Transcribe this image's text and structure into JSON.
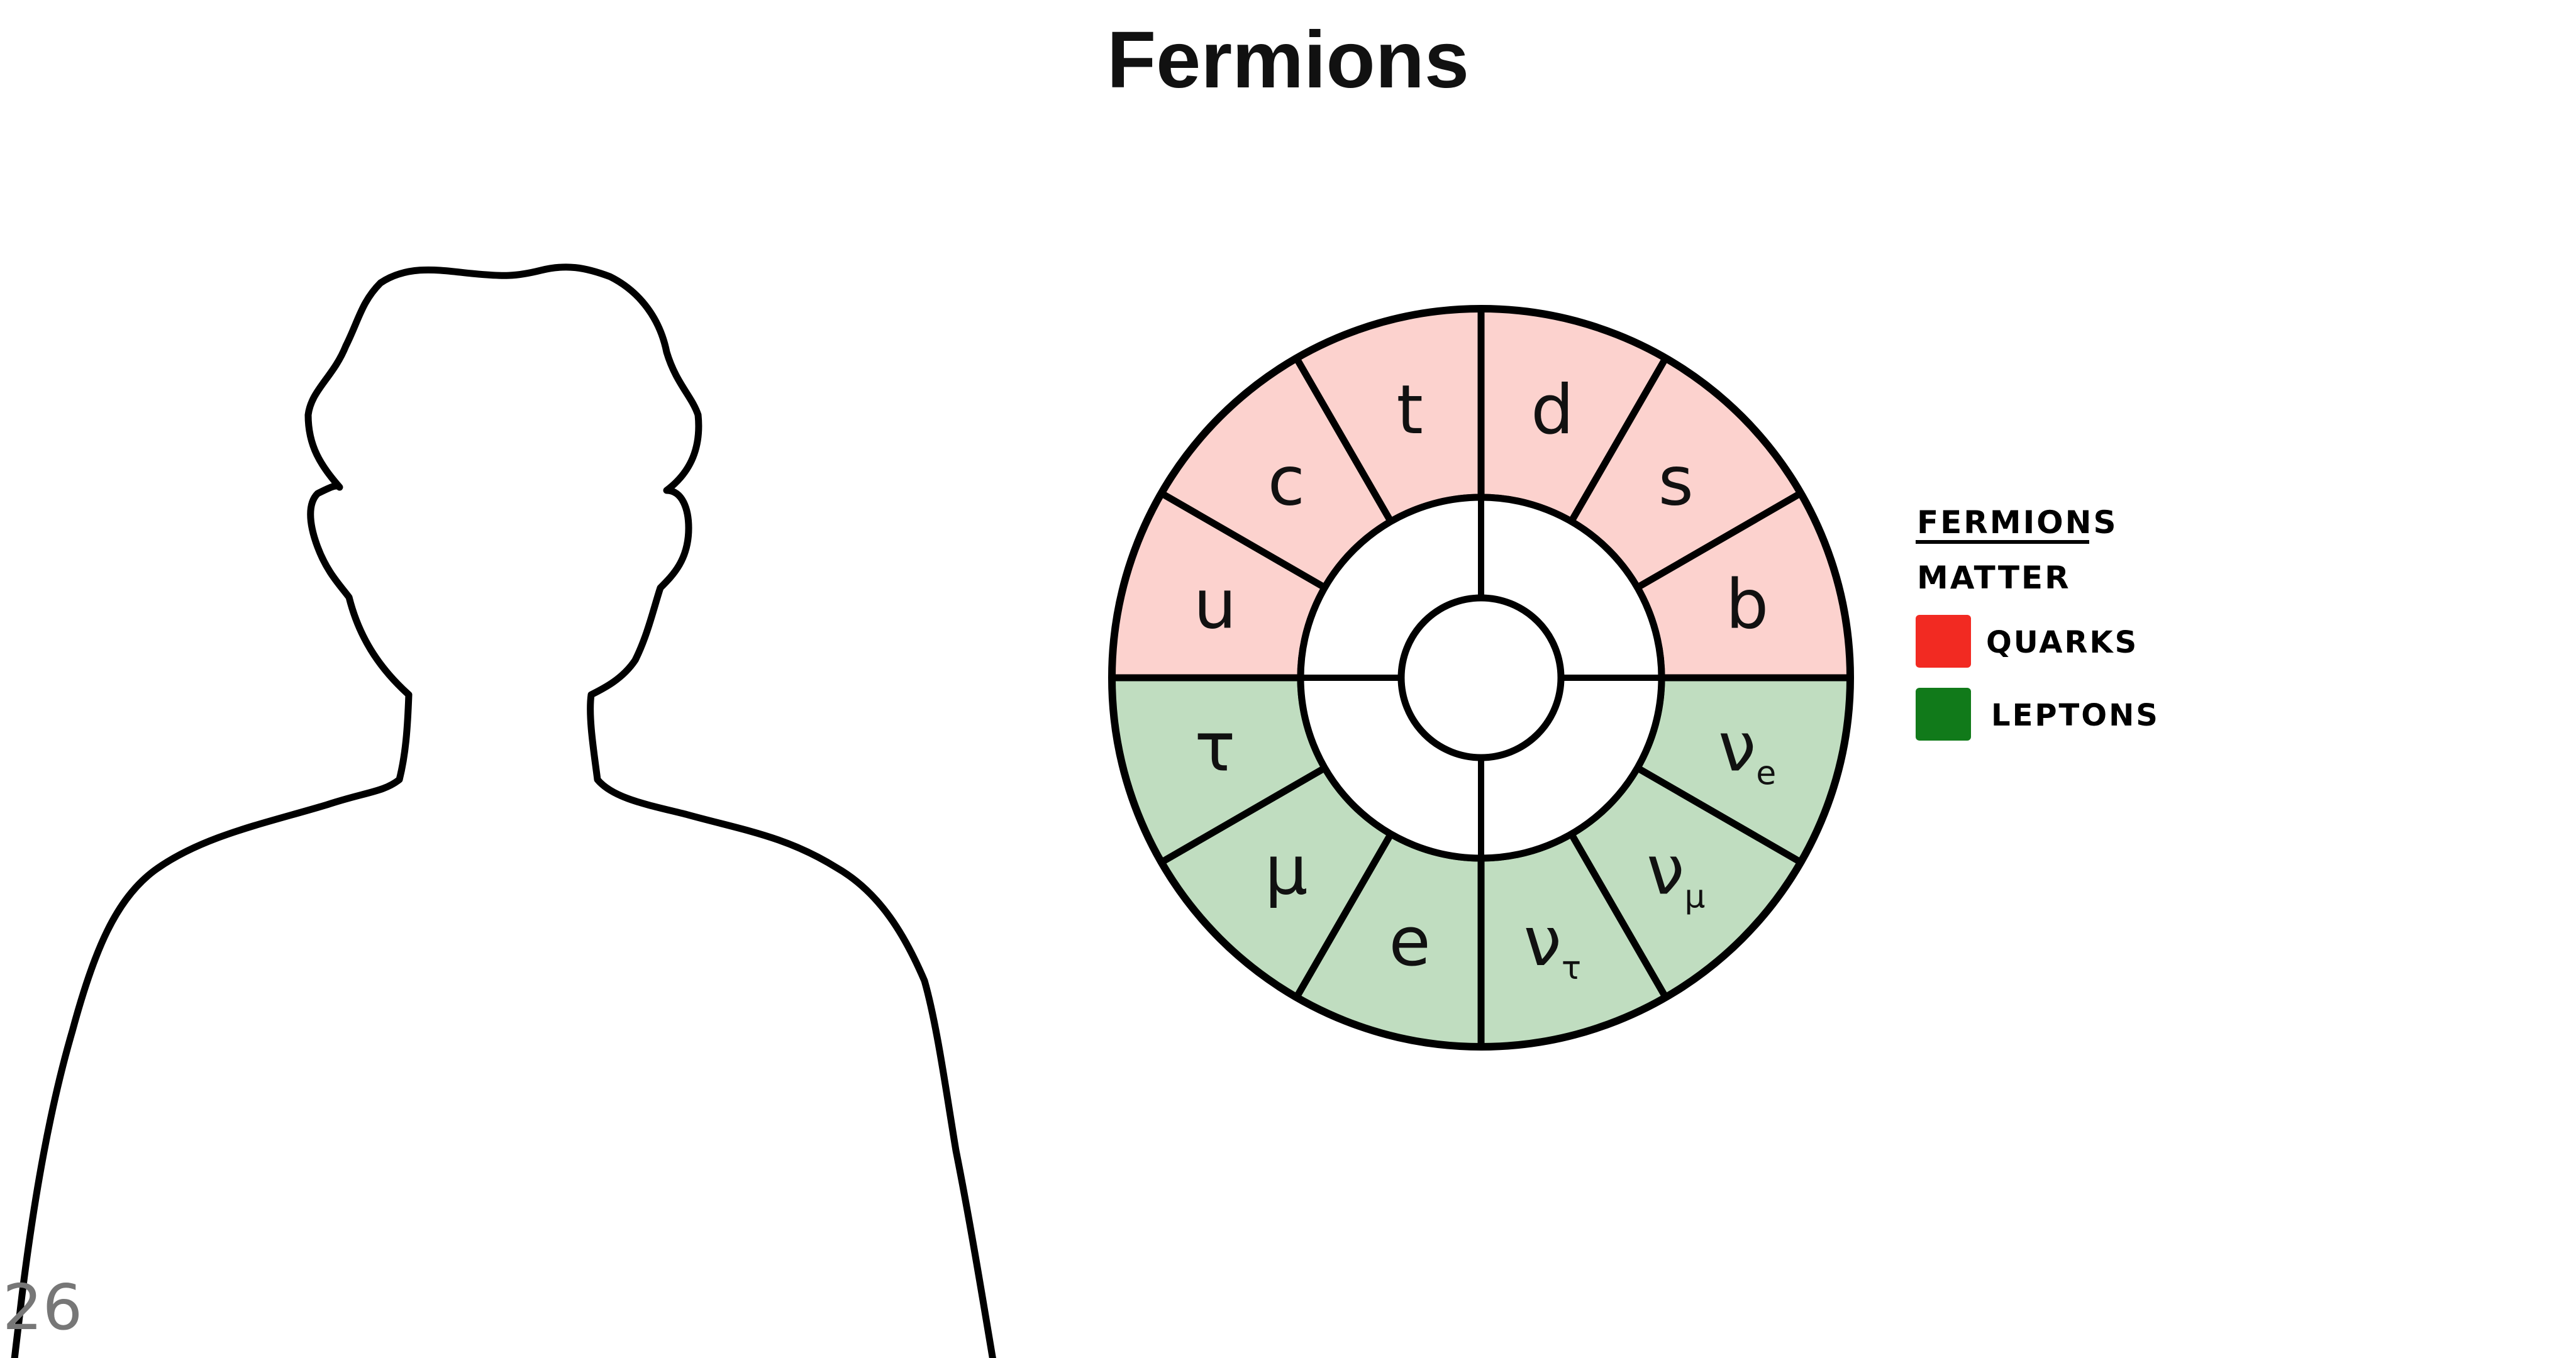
{
  "slide": {
    "title": "Fermions",
    "page_number": "26"
  },
  "legend": {
    "heading": "FERMIONS",
    "subheading": "MATTER",
    "items": [
      {
        "label": "QUARKS",
        "color": "#f22a22"
      },
      {
        "label": "LEPTONS",
        "color": "#117a1a"
      }
    ]
  },
  "wheel": {
    "quark_fill": "#fcd2ce",
    "lepton_fill": "#c0ddc0",
    "segments": [
      {
        "symbol": "d",
        "subscript": "",
        "group": "quarks"
      },
      {
        "symbol": "s",
        "subscript": "",
        "group": "quarks"
      },
      {
        "symbol": "b",
        "subscript": "",
        "group": "quarks"
      },
      {
        "symbol": "ν",
        "subscript": "e",
        "group": "leptons"
      },
      {
        "symbol": "ν",
        "subscript": "μ",
        "group": "leptons"
      },
      {
        "symbol": "ν",
        "subscript": "τ",
        "group": "leptons"
      },
      {
        "symbol": "e",
        "subscript": "",
        "group": "leptons"
      },
      {
        "symbol": "μ",
        "subscript": "",
        "group": "leptons"
      },
      {
        "symbol": "τ",
        "subscript": "",
        "group": "leptons"
      },
      {
        "symbol": "u",
        "subscript": "",
        "group": "quarks"
      },
      {
        "symbol": "c",
        "subscript": "",
        "group": "quarks"
      },
      {
        "symbol": "t",
        "subscript": "",
        "group": "quarks"
      }
    ]
  }
}
